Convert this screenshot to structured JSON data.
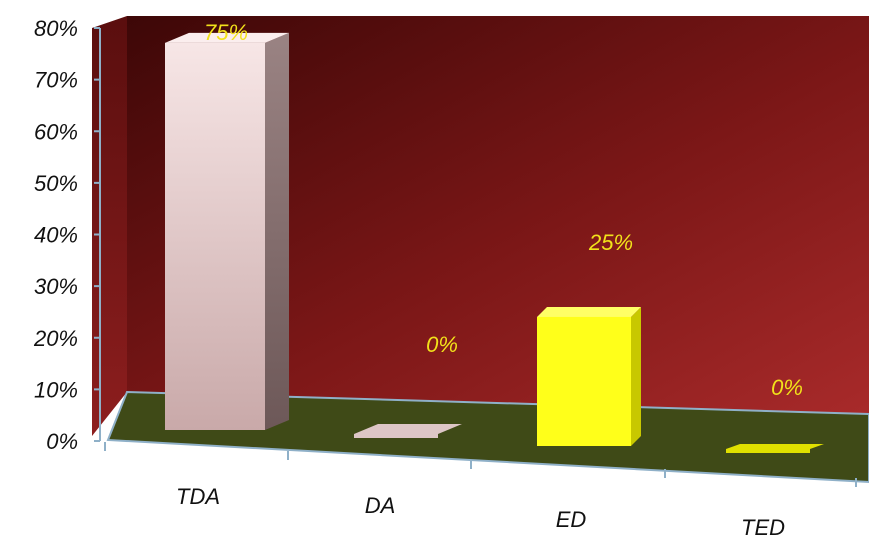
{
  "chart_data": {
    "type": "bar",
    "categories": [
      "TDA",
      "DA",
      "ED",
      "TED"
    ],
    "values": [
      75,
      0,
      25,
      0
    ],
    "value_unit": "%",
    "data_labels": [
      "75%",
      "0%",
      "25%",
      "0%"
    ],
    "y_tick_labels": [
      "0%",
      "10%",
      "20%",
      "30%",
      "40%",
      "50%",
      "60%",
      "70%",
      "80%"
    ],
    "ylim": [
      0,
      80
    ],
    "title": "",
    "xlabel": "",
    "ylabel": "",
    "grid": false,
    "legend": "none",
    "style": "3d-column",
    "colors": {
      "wall_dark": "#4f0c0c",
      "wall_light": "#a12727",
      "floor": "#3f4a17",
      "floor_edge": "#8fb0c8",
      "bar_colors": [
        "#efd6d6",
        "#e8d2d2",
        "#ffff1a",
        "#e6e600"
      ],
      "data_label_color": "#f2e21a"
    }
  }
}
